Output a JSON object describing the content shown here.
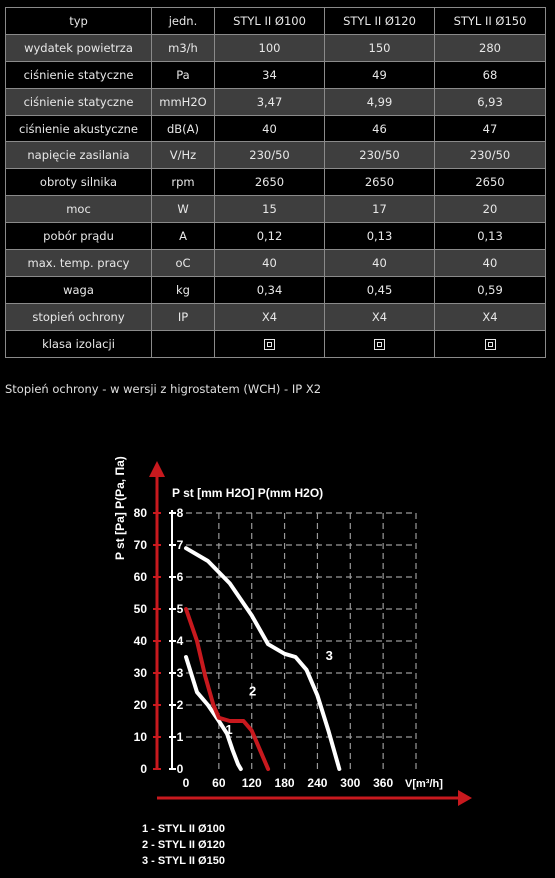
{
  "table": {
    "header": [
      "typ",
      "jedn.",
      "STYL II Ø100",
      "STYL II Ø120",
      "STYL II Ø150"
    ],
    "rows": [
      {
        "label": "wydatek powietrza",
        "unit": "m3/h",
        "values": [
          "100",
          "150",
          "280"
        ]
      },
      {
        "label": "ciśnienie statyczne",
        "unit": "Pa",
        "values": [
          "34",
          "49",
          "68"
        ]
      },
      {
        "label": "ciśnienie statyczne",
        "unit": "mmH2O",
        "values": [
          "3,47",
          "4,99",
          "6,93"
        ]
      },
      {
        "label": "ciśnienie akustyczne",
        "unit": "dB(A)",
        "values": [
          "40",
          "46",
          "47"
        ]
      },
      {
        "label": "napięcie zasilania",
        "unit": "V/Hz",
        "values": [
          "230/50",
          "230/50",
          "230/50"
        ]
      },
      {
        "label": "obroty silnika",
        "unit": "rpm",
        "values": [
          "2650",
          "2650",
          "2650"
        ]
      },
      {
        "label": "moc",
        "unit": "W",
        "values": [
          "15",
          "17",
          "20"
        ]
      },
      {
        "label": "pobór prądu",
        "unit": "A",
        "values": [
          "0,12",
          "0,13",
          "0,13"
        ]
      },
      {
        "label": "max. temp. pracy",
        "unit": "oC",
        "values": [
          "40",
          "40",
          "40"
        ]
      },
      {
        "label": "waga",
        "unit": "kg",
        "values": [
          "0,34",
          "0,45",
          "0,59"
        ]
      },
      {
        "label": "stopień ochrony",
        "unit": "IP",
        "values": [
          "X4",
          "X4",
          "X4"
        ]
      },
      {
        "label": "klasa izolacji",
        "unit": "",
        "values": [
          "",
          "",
          ""
        ],
        "icon": "double-insulation-icon"
      }
    ]
  },
  "note": "Stopień ochrony - w wersji z higrostatem (WCH) - IP X2",
  "chart_data": {
    "type": "line",
    "ylabel_pa": "P st [Pa] P(Pa, Па)",
    "ylabel_mm": "P st [mm H2O] P(mm H2O)",
    "xlabel": "V[m³/h]",
    "x_ticks": [
      "0",
      "60",
      "120",
      "180",
      "240",
      "300",
      "360"
    ],
    "y_pa_ticks": [
      "0",
      "10",
      "20",
      "30",
      "40",
      "50",
      "60",
      "70",
      "80"
    ],
    "y_mm_ticks": [
      "0",
      "1",
      "2",
      "3",
      "4",
      "5",
      "6",
      "7",
      "8"
    ],
    "xlim": [
      0,
      420
    ],
    "ylim_mm": [
      0,
      8
    ],
    "grid": true,
    "series": [
      {
        "name": "1",
        "color": "#ffffff",
        "x": [
          0,
          20,
          40,
          60,
          75,
          85,
          95,
          100
        ],
        "y": [
          3.5,
          2.4,
          2.0,
          1.5,
          1.1,
          0.6,
          0.15,
          0
        ]
      },
      {
        "name": "2",
        "color": "#c8191e",
        "x": [
          0,
          20,
          35,
          50,
          60,
          80,
          105,
          120,
          135,
          150
        ],
        "y": [
          5.0,
          4.0,
          2.9,
          2.0,
          1.6,
          1.5,
          1.5,
          1.2,
          0.6,
          0
        ]
      },
      {
        "name": "3",
        "color": "#ffffff",
        "x": [
          0,
          40,
          80,
          120,
          150,
          180,
          200,
          220,
          240,
          260,
          280
        ],
        "y": [
          6.9,
          6.5,
          5.8,
          4.8,
          3.9,
          3.6,
          3.5,
          3.1,
          2.3,
          1.2,
          0
        ]
      }
    ],
    "legend": [
      "1 - STYL II Ø100",
      "2 - STYL II Ø120",
      "3 - STYL II Ø150"
    ]
  }
}
